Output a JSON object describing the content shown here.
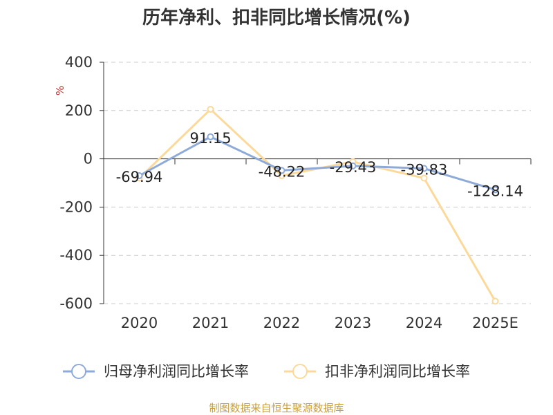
{
  "title": "历年净利、扣非同比增长情况(%)",
  "source": "制图数据来自恒生聚源数据库",
  "colors": {
    "series1": "#8eaad8",
    "series2": "#fcd99a",
    "unit": "#cc2b2b",
    "source": "#c8a03c",
    "axis": "#333333",
    "grid": "#cccccc"
  },
  "chart_data": {
    "type": "line",
    "categories": [
      "2020",
      "2021",
      "2022",
      "2023",
      "2024",
      "2025E"
    ],
    "y_unit": "%",
    "ylim": [
      -600,
      400
    ],
    "y_ticks": [
      "400",
      "200",
      "0",
      "-200",
      "-400",
      "-600"
    ],
    "y_tick_values": [
      400,
      200,
      0,
      -200,
      -400,
      -600
    ],
    "grid": true,
    "legend_position": "bottom",
    "series": [
      {
        "name": "归母净利润同比增长率",
        "values": [
          -69.94,
          91.15,
          -48.22,
          -29.43,
          -39.83,
          -128.14
        ],
        "labels": [
          "-69.94",
          "91.15",
          "-48.22",
          "-29.43",
          "-39.83",
          "-128.14"
        ]
      },
      {
        "name": "扣非净利润同比增长率",
        "values": [
          -80,
          205,
          -70,
          -12,
          -80,
          -590
        ]
      }
    ]
  }
}
